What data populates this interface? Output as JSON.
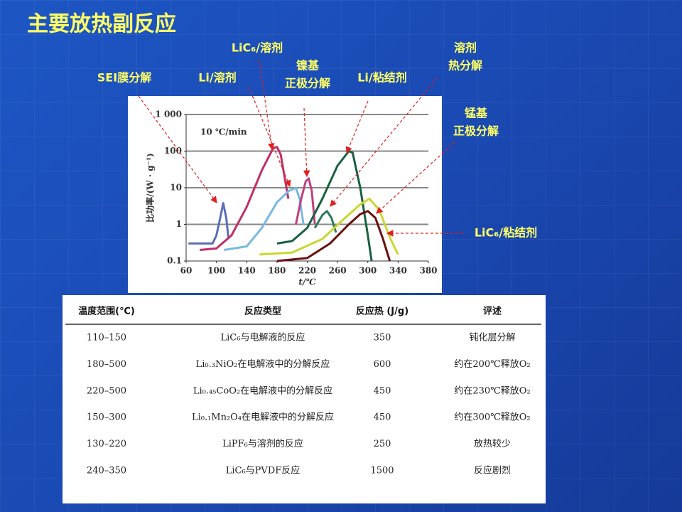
{
  "title": "主要放热副反应",
  "callouts": [
    {
      "lines": [
        "SEI膜分解"
      ]
    },
    {
      "lines": [
        "LiC₆/溶剂"
      ]
    },
    {
      "lines": [
        "Li/溶剂"
      ]
    },
    {
      "lines": [
        "镍基",
        "正极分解"
      ]
    },
    {
      "lines": [
        "Li/粘结剂"
      ]
    },
    {
      "lines": [
        "溶剂",
        "热分解"
      ]
    },
    {
      "lines": [
        "锰基",
        "正极分解"
      ]
    },
    {
      "lines": [
        "LiC₆/粘结剂"
      ]
    }
  ],
  "chart_data": {
    "type": "line",
    "annotation": "10 ℃/min",
    "x_label": "t/℃",
    "y_label": "比功率/(W · g⁻¹)",
    "xlim": [
      60,
      380
    ],
    "xticks": [
      60,
      100,
      140,
      180,
      220,
      260,
      300,
      340,
      380
    ],
    "ylim": [
      0.1,
      1000
    ],
    "yticks": [
      0.1,
      1,
      10,
      100,
      {
        "value": 1000,
        "label": "1 000"
      }
    ],
    "yscale": "log",
    "grid": true,
    "series": [
      {
        "color": "#5a6fb8",
        "x": [
          63,
          95,
          100,
          105,
          109,
          113,
          116
        ],
        "values": [
          0.3,
          0.3,
          0.5,
          1.5,
          3.8,
          1.5,
          0.4
        ]
      },
      {
        "color": "#c0306a",
        "x": [
          78,
          100,
          120,
          140,
          160,
          175,
          180,
          185,
          190,
          195
        ],
        "values": [
          0.2,
          0.22,
          0.5,
          3,
          30,
          120,
          130,
          80,
          20,
          5
        ]
      },
      {
        "color": "#7ab8e0",
        "x": [
          110,
          140,
          160,
          180,
          195,
          205,
          210,
          215
        ],
        "values": [
          0.2,
          0.25,
          0.8,
          4,
          8,
          10,
          5,
          1
        ]
      },
      {
        "color": "#c04080",
        "x": [
          205,
          212,
          218,
          222,
          226,
          230
        ],
        "values": [
          1,
          5,
          15,
          18,
          8,
          1
        ]
      },
      {
        "color": "#1a6040",
        "x": [
          180,
          200,
          220,
          240,
          260,
          275,
          280,
          290,
          300,
          305
        ],
        "values": [
          0.3,
          0.35,
          0.8,
          5,
          40,
          100,
          90,
          10,
          0.5,
          0.1
        ]
      },
      {
        "color": "#2a7a5a",
        "x": [
          230,
          240,
          246,
          252,
          258
        ],
        "values": [
          0.8,
          1.8,
          2.3,
          1.5,
          0.6
        ]
      },
      {
        "color": "#c8d830",
        "x": [
          157,
          200,
          240,
          270,
          290,
          302,
          315,
          330,
          340
        ],
        "values": [
          0.15,
          0.17,
          0.4,
          1.5,
          3.5,
          5,
          2.5,
          0.4,
          0.15
        ]
      },
      {
        "color": "#6a1010",
        "x": [
          180,
          220,
          250,
          275,
          290,
          300,
          310,
          320,
          329
        ],
        "values": [
          0.1,
          0.12,
          0.3,
          1,
          1.9,
          2.3,
          1.5,
          0.4,
          0.1
        ]
      }
    ]
  },
  "table": {
    "header": [
      "温度范围(℃)",
      "反应类型",
      "反应热 (J/g)",
      "评述"
    ],
    "rows": [
      [
        "110–150",
        "LiC₆与电解液的反应",
        350,
        "钝化层分解"
      ],
      [
        "180–500",
        "Li₀.₃NiO₂在电解液中的分解反应",
        600,
        "约在200℃释放O₂"
      ],
      [
        "220–500",
        "Li₀.₄₅CoO₂在电解液中的分解反应",
        450,
        "约在230℃释放O₂"
      ],
      [
        "150–300",
        "Li₀.₁Mn₂O₄在电解液中的分解反应",
        450,
        "约在300℃释放O₂"
      ],
      [
        "130–220",
        "LiPF₆与溶剂的反应",
        250,
        "放热较少"
      ],
      [
        "240–350",
        "LiC₆与PVDF反应",
        1500,
        "反应剧烈"
      ]
    ]
  }
}
